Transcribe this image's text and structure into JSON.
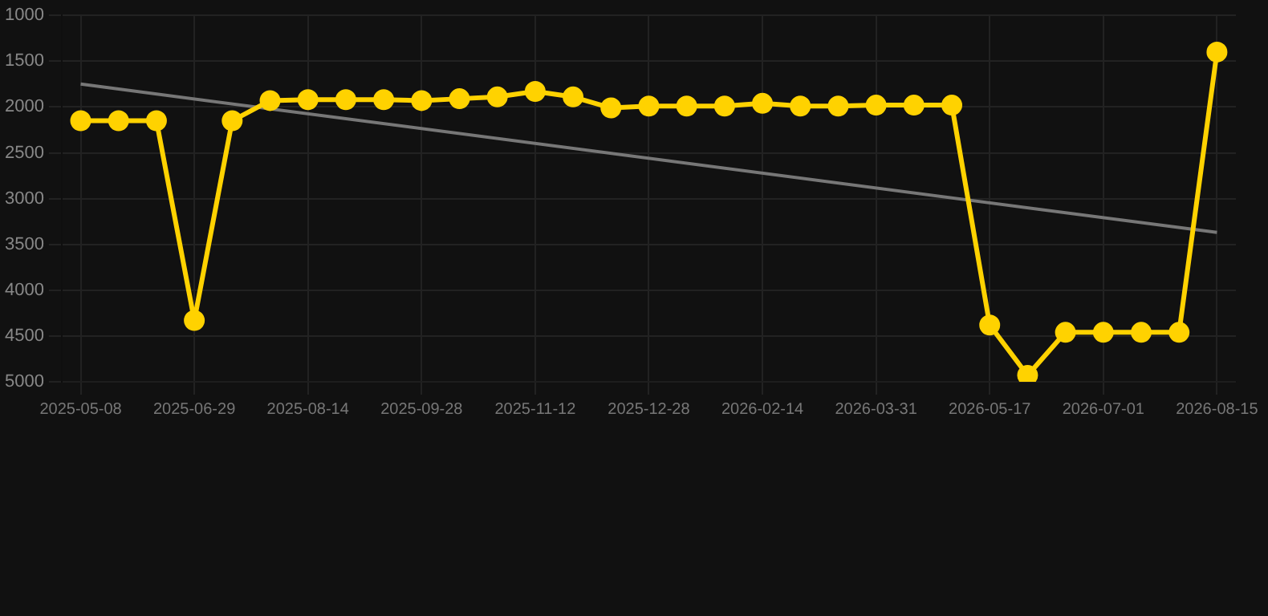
{
  "chart_data": {
    "type": "line",
    "categories": [
      "2025-05-08",
      null,
      null,
      "2025-06-29",
      null,
      null,
      "2025-08-14",
      null,
      null,
      "2025-09-28",
      null,
      null,
      "2025-11-12",
      null,
      null,
      "2025-12-28",
      null,
      null,
      "2026-02-14",
      null,
      null,
      "2026-03-31",
      null,
      null,
      "2026-05-17",
      null,
      null,
      "2026-07-01",
      null,
      null,
      "2026-08-15"
    ],
    "series": [
      {
        "color": "#ffd200",
        "marker": "circle",
        "values": [
          2150,
          2150,
          2150,
          4330,
          2150,
          1930,
          1920,
          1920,
          1920,
          1930,
          1910,
          1890,
          1830,
          1890,
          2010,
          1990,
          1990,
          1990,
          1960,
          1990,
          1990,
          1980,
          1980,
          1980,
          4380,
          4930,
          4460,
          4460,
          4460,
          4460,
          1400
        ]
      },
      {
        "type": "line",
        "color": "#777777",
        "marker": "none",
        "values": [
          1750,
          null,
          null,
          null,
          null,
          null,
          null,
          null,
          null,
          null,
          null,
          null,
          null,
          null,
          null,
          null,
          null,
          null,
          null,
          null,
          null,
          null,
          null,
          null,
          null,
          null,
          null,
          null,
          null,
          null,
          3370
        ]
      }
    ],
    "ylim": [
      5000,
      1000
    ],
    "yticks": [
      1000,
      1500,
      2000,
      2500,
      3000,
      3500,
      4000,
      4500,
      5000
    ],
    "grid": true
  }
}
